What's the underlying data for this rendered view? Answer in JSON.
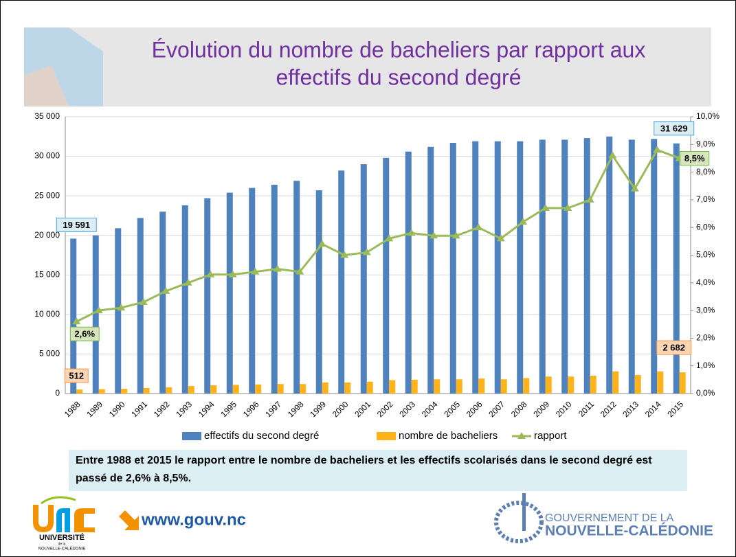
{
  "page": {
    "note": "Entre 1988 et 2015 le rapport entre le nombre de bacheliers et les effectifs scolarisés dans le second degré est passé de 2,6% à 8,5%.",
    "website": "www.gouv.nc",
    "university_logo": [
      "UNIVERSITÉ",
      "de la",
      "NOUVELLE-CALÉDONIE"
    ],
    "government_logo": [
      "GOUVERNEMENT DE LA",
      "NOUVELLE-CALÉDONIE"
    ]
  },
  "chart_data": {
    "type": "bar-line",
    "title": [
      "Évolution du nombre de bacheliers par rapport aux",
      "effectifs du second degré"
    ],
    "categories": [
      "1988",
      "1989",
      "1990",
      "1991",
      "1992",
      "1993",
      "1994",
      "1995",
      "1996",
      "1997",
      "1998",
      "1999",
      "2000",
      "2001",
      "2002",
      "2003",
      "2004",
      "2005",
      "2006",
      "2007",
      "2008",
      "2009",
      "2010",
      "2011",
      "2012",
      "2013",
      "2014",
      "2015"
    ],
    "series": [
      {
        "name": "effectifs du second degré",
        "color": "#4f81bd",
        "type": "bar",
        "values": [
          19591,
          20000,
          20900,
          22200,
          23000,
          23800,
          24700,
          25400,
          26000,
          26400,
          26900,
          25700,
          28200,
          29000,
          29800,
          30600,
          31200,
          31700,
          31900,
          31900,
          31900,
          32100,
          32100,
          32300,
          32500,
          32100,
          32200,
          31629
        ],
        "value_labels": [
          "19 591",
          null,
          null,
          null,
          null,
          null,
          null,
          null,
          null,
          null,
          null,
          null,
          null,
          null,
          null,
          null,
          null,
          null,
          null,
          null,
          null,
          null,
          null,
          null,
          null,
          null,
          null,
          "31 629"
        ]
      },
      {
        "name": "nombre de bacheliers",
        "color": "#ffb31a",
        "type": "bar",
        "values": [
          512,
          550,
          600,
          700,
          800,
          950,
          1050,
          1100,
          1150,
          1200,
          1200,
          1400,
          1400,
          1500,
          1700,
          1750,
          1800,
          1800,
          1900,
          1800,
          1950,
          2150,
          2150,
          2250,
          2800,
          2350,
          2800,
          2682
        ],
        "value_labels": [
          "512",
          null,
          null,
          null,
          null,
          null,
          null,
          null,
          null,
          null,
          null,
          null,
          null,
          null,
          null,
          null,
          null,
          null,
          null,
          null,
          null,
          null,
          null,
          null,
          null,
          null,
          null,
          "2 682"
        ]
      },
      {
        "name": "rapport",
        "color": "#9bbb59",
        "type": "line",
        "axis": "y2",
        "values": [
          2.6,
          3.0,
          3.1,
          3.3,
          3.7,
          4.0,
          4.3,
          4.3,
          4.4,
          4.5,
          4.4,
          5.4,
          5.0,
          5.1,
          5.6,
          5.8,
          5.7,
          5.7,
          6.0,
          5.6,
          6.2,
          6.7,
          6.7,
          7.0,
          8.6,
          7.4,
          8.8,
          8.5
        ],
        "value_labels": [
          "2,6%",
          null,
          null,
          null,
          null,
          null,
          null,
          null,
          null,
          null,
          null,
          null,
          null,
          null,
          null,
          null,
          null,
          null,
          null,
          null,
          null,
          null,
          null,
          null,
          null,
          null,
          null,
          "8,5%"
        ]
      }
    ],
    "ylim": [
      0,
      35000
    ],
    "yticks": [
      0,
      {
        "value": 5000,
        "label": "5 000"
      },
      {
        "value": 10000,
        "label": "10 000"
      },
      {
        "value": 15000,
        "label": "15 000"
      },
      {
        "value": 20000,
        "label": "20 000"
      },
      {
        "value": 25000,
        "label": "25 000"
      },
      {
        "value": 30000,
        "label": "30 000"
      },
      {
        "value": 35000,
        "label": "35 000"
      }
    ],
    "y2lim": [
      0,
      10
    ],
    "y2ticks": [
      {
        "value": 0,
        "label": "0,0%"
      },
      {
        "value": 1,
        "label": "1,0%"
      },
      {
        "value": 2,
        "label": "2,0%"
      },
      {
        "value": 3,
        "label": "3,0%"
      },
      {
        "value": 4,
        "label": "4,0%"
      },
      {
        "value": 5,
        "label": "5,0%"
      },
      {
        "value": 6,
        "label": "6,0%"
      },
      {
        "value": 7,
        "label": "7,0%"
      },
      {
        "value": 8,
        "label": "8,0%"
      },
      {
        "value": 9,
        "label": "9,0%"
      },
      {
        "value": 10,
        "label": "10,0%"
      }
    ],
    "grid": true,
    "legend": "bottom"
  }
}
